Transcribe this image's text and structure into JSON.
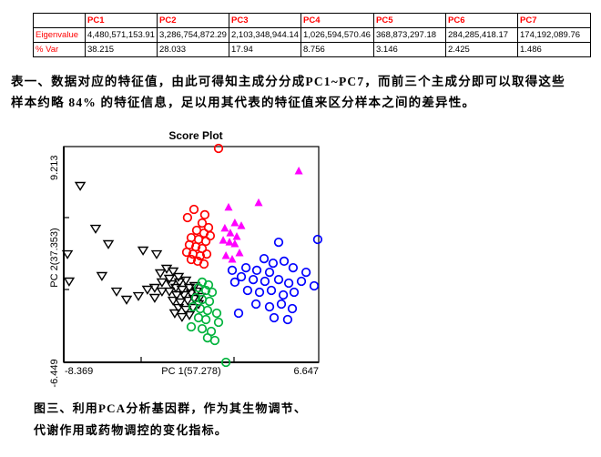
{
  "table": {
    "columns": [
      "",
      "PC1",
      "PC2",
      "PC3",
      "PC4",
      "PC5",
      "PC6",
      "PC7"
    ],
    "rows": [
      {
        "label": "Eigenvalue",
        "values": [
          "4,480,571,153.91",
          "3,286,754,872.29",
          "2,103,348,944.14",
          "1,026,594,570.46",
          "368,873,297.18",
          "284,285,418.17",
          "174,192,089.76"
        ]
      },
      {
        "label": "% Var",
        "values": [
          "38.215",
          "28.033",
          "17.94",
          "8.756",
          "3.146",
          "2.425",
          "1.486"
        ]
      }
    ],
    "header_color": "#ff0000"
  },
  "paragraph": {
    "line1": "表一、数据对应的特征值，由此可得知主成分分成PC1~PC7，而前三个主成分即可以取得这些",
    "line2": "样本约略 84% 的特征信息，足以用其代表的特征值来区分样本之间的差异性。"
  },
  "caption": {
    "line1": "图三、利用PCA分析基因群，作为其生物调节、",
    "line2": "代谢作用或药物调控的变化指标。"
  },
  "chart_data": {
    "type": "scatter",
    "title": "Score Plot",
    "xlabel": "PC 1(57.278)",
    "ylabel": "PC 2(37.353)",
    "xlim": [
      -8.369,
      6.647
    ],
    "ylim": [
      -6.449,
      9.213
    ],
    "x_tick_labels": {
      "min": "-8.369",
      "max": "6.647"
    },
    "y_tick_labels": {
      "min": "-6.449",
      "max": "9.213"
    },
    "grid": false,
    "legend": "none",
    "series": [
      {
        "name": "black-open-triangles",
        "marker": "triangle-down-open",
        "color": "#000000",
        "points": [
          [
            -7.4,
            6.37
          ],
          [
            -6.49,
            3.26
          ],
          [
            -5.74,
            2.14
          ],
          [
            -8.15,
            1.41
          ],
          [
            -8.05,
            -0.57
          ],
          [
            -6.12,
            -0.17
          ],
          [
            -3.7,
            1.68
          ],
          [
            -2.9,
            1.41
          ],
          [
            -5.26,
            -1.3
          ],
          [
            -4.67,
            -1.89
          ],
          [
            -3.97,
            -1.63
          ],
          [
            -3.01,
            -1.76
          ],
          [
            -2.31,
            0.36
          ],
          [
            -2.68,
            0.03
          ],
          [
            -1.93,
            0.16
          ],
          [
            -2.15,
            -0.37
          ],
          [
            -1.61,
            -0.24
          ],
          [
            -2.58,
            -0.63
          ],
          [
            -2.04,
            -0.77
          ],
          [
            -1.56,
            -0.63
          ],
          [
            -1.18,
            -0.5
          ],
          [
            -1.77,
            -1.03
          ],
          [
            -1.4,
            -1.16
          ],
          [
            -0.97,
            -1.03
          ],
          [
            -0.65,
            -0.9
          ],
          [
            -2.15,
            -1.3
          ],
          [
            -1.72,
            -1.56
          ],
          [
            -1.29,
            -1.56
          ],
          [
            -0.86,
            -1.43
          ],
          [
            -0.54,
            -1.3
          ],
          [
            -1.93,
            -1.96
          ],
          [
            -1.5,
            -2.09
          ],
          [
            -1.07,
            -1.96
          ],
          [
            -0.7,
            -1.83
          ],
          [
            -0.33,
            -1.69
          ],
          [
            -1.61,
            -2.49
          ],
          [
            -1.18,
            -2.62
          ],
          [
            -0.76,
            -2.49
          ],
          [
            -2.58,
            -1.3
          ],
          [
            -3.01,
            -1.03
          ],
          [
            -3.44,
            -1.16
          ],
          [
            -0.97,
            -3.01
          ],
          [
            -1.4,
            -3.15
          ],
          [
            -1.83,
            -2.88
          ],
          [
            -0.43,
            -2.22
          ]
        ]
      },
      {
        "name": "red-open-circles",
        "marker": "circle-open",
        "color": "#ff0000",
        "points": [
          [
            0.75,
            9.08
          ],
          [
            -0.7,
            4.65
          ],
          [
            -1.08,
            4.06
          ],
          [
            -0.06,
            4.26
          ],
          [
            -0.22,
            3.66
          ],
          [
            0.16,
            3.33
          ],
          [
            -0.54,
            3.13
          ],
          [
            -0.11,
            2.93
          ],
          [
            0.26,
            2.74
          ],
          [
            -0.86,
            2.6
          ],
          [
            -0.43,
            2.47
          ],
          [
            0.0,
            2.34
          ],
          [
            -0.97,
            2.08
          ],
          [
            -0.59,
            1.94
          ],
          [
            -0.22,
            1.81
          ],
          [
            -1.13,
            1.55
          ],
          [
            -0.76,
            1.41
          ],
          [
            -0.33,
            1.28
          ],
          [
            0.05,
            1.41
          ],
          [
            -0.86,
            1.02
          ],
          [
            -0.48,
            0.89
          ],
          [
            -0.11,
            0.69
          ]
        ]
      },
      {
        "name": "magenta-filled-triangles",
        "marker": "triangle-up-filled",
        "color": "#ff00ff",
        "points": [
          [
            5.47,
            7.43
          ],
          [
            3.11,
            5.12
          ],
          [
            1.34,
            4.79
          ],
          [
            1.71,
            3.66
          ],
          [
            2.09,
            3.46
          ],
          [
            1.12,
            3.27
          ],
          [
            1.44,
            2.93
          ],
          [
            1.82,
            2.67
          ],
          [
            1.02,
            2.4
          ],
          [
            1.39,
            2.27
          ],
          [
            1.71,
            2.14
          ],
          [
            1.98,
            1.48
          ],
          [
            1.18,
            1.28
          ],
          [
            1.55,
            1.02
          ]
        ]
      },
      {
        "name": "blue-open-circles",
        "marker": "circle-open",
        "color": "#0000ff",
        "points": [
          [
            6.59,
            2.47
          ],
          [
            4.29,
            2.27
          ],
          [
            3.43,
            1.08
          ],
          [
            3.96,
            0.75
          ],
          [
            4.61,
            0.89
          ],
          [
            2.36,
            0.42
          ],
          [
            3.0,
            0.23
          ],
          [
            3.75,
            0.09
          ],
          [
            5.14,
            0.42
          ],
          [
            5.9,
            0.09
          ],
          [
            2.09,
            -0.24
          ],
          [
            2.79,
            -0.44
          ],
          [
            3.48,
            -0.57
          ],
          [
            4.29,
            -0.44
          ],
          [
            4.88,
            -0.7
          ],
          [
            5.63,
            -0.57
          ],
          [
            6.38,
            -0.9
          ],
          [
            2.46,
            -1.23
          ],
          [
            3.16,
            -1.36
          ],
          [
            3.86,
            -1.23
          ],
          [
            4.56,
            -1.56
          ],
          [
            5.2,
            -1.36
          ],
          [
            2.95,
            -2.22
          ],
          [
            3.75,
            -2.42
          ],
          [
            4.45,
            -2.22
          ],
          [
            5.09,
            -2.55
          ],
          [
            4.02,
            -3.21
          ],
          [
            4.82,
            -3.34
          ],
          [
            1.93,
            -2.88
          ],
          [
            1.55,
            0.23
          ],
          [
            1.71,
            -0.63
          ]
        ]
      },
      {
        "name": "green-open-circles",
        "marker": "circle-open",
        "color": "#00b33c",
        "points": [
          [
            -0.22,
            -0.63
          ],
          [
            0.16,
            -0.83
          ],
          [
            -0.43,
            -1.03
          ],
          [
            0.0,
            -1.23
          ],
          [
            0.37,
            -1.36
          ],
          [
            -0.59,
            -1.76
          ],
          [
            -0.22,
            -1.89
          ],
          [
            0.21,
            -2.02
          ],
          [
            -0.76,
            -2.42
          ],
          [
            -0.33,
            -2.55
          ],
          [
            0.1,
            -2.68
          ],
          [
            0.64,
            -2.88
          ],
          [
            -0.43,
            -3.21
          ],
          [
            0.0,
            -3.34
          ],
          [
            0.75,
            -3.54
          ],
          [
            -0.86,
            -3.87
          ],
          [
            -0.22,
            -4.01
          ],
          [
            0.32,
            -4.2
          ],
          [
            0.1,
            -4.67
          ],
          [
            0.53,
            -4.86
          ],
          [
            1.18,
            -6.45
          ]
        ]
      }
    ]
  }
}
